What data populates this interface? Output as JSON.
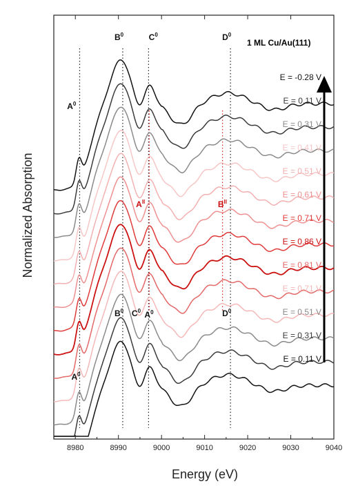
{
  "chart_data": {
    "type": "line",
    "title": "1 ML Cu/Au(111)",
    "xlabel": "Energy (eV)",
    "ylabel": "Normalized Absorption",
    "xlim": [
      8975,
      9040
    ],
    "xticks": [
      8980,
      8990,
      9000,
      9010,
      9020,
      9030,
      9040
    ],
    "y_ticks_shown": false,
    "reference_lines": {
      "black": [
        8981,
        8991,
        8997,
        9016
      ],
      "red": [
        8997,
        9014
      ]
    },
    "annotations": [
      {
        "text": "A",
        "sup": "0",
        "x": 8980,
        "pos": "upper"
      },
      {
        "text": "B",
        "sup": "0",
        "x": 8991,
        "pos": "top"
      },
      {
        "text": "C",
        "sup": "0",
        "x": 8998,
        "pos": "top"
      },
      {
        "text": "D",
        "sup": "0",
        "x": 9016,
        "pos": "top"
      },
      {
        "text": "A",
        "sup": "II",
        "x": 8996,
        "pos": "mid"
      },
      {
        "text": "B",
        "sup": "II",
        "x": 9015,
        "pos": "mid"
      },
      {
        "text": "B",
        "sup": "0",
        "x": 8991,
        "pos": "lower"
      },
      {
        "text": "C",
        "sup": "0",
        "x": 8995,
        "pos": "lower"
      },
      {
        "text": "A",
        "sup": "0",
        "x": 8997,
        "pos": "lower-small"
      },
      {
        "text": "D",
        "sup": "0",
        "x": 9016,
        "pos": "lower"
      },
      {
        "text": "A",
        "sup": "0",
        "x": 8981,
        "pos": "bottom"
      }
    ],
    "series": [
      {
        "name": "E = -0.28 V",
        "color": "#111111"
      },
      {
        "name": "E = 0.11 V",
        "color": "#3a3a3a"
      },
      {
        "name": "E = 0.31 V",
        "color": "#8a8a8a"
      },
      {
        "name": "E = 0.41 V",
        "color": "#f7c6c6"
      },
      {
        "name": "E = 0.51 V",
        "color": "#f3b0b0"
      },
      {
        "name": "E = 0.61 V",
        "color": "#ee9090"
      },
      {
        "name": "E = 0.71 V",
        "color": "#e03a3a"
      },
      {
        "name": "E = 0.86 V",
        "color": "#cc1111"
      },
      {
        "name": "E = 0.81 V",
        "color": "#e46868"
      },
      {
        "name": "E = 0.71 V",
        "color": "#f5b8b8"
      },
      {
        "name": "E = 0.51 V",
        "color": "#8a8a8a"
      },
      {
        "name": "E = 0.31 V",
        "color": "#3a3a3a"
      },
      {
        "name": "E = 0.11 V",
        "color": "#111111"
      }
    ],
    "arrow": {
      "direction": "up",
      "color": "#000000"
    }
  }
}
